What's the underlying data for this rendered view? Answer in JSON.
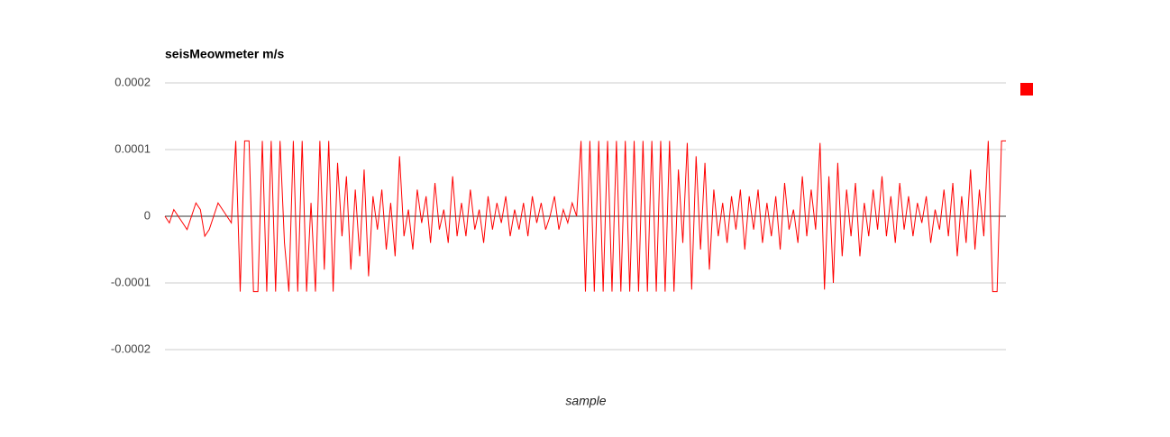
{
  "chart_data": {
    "type": "line",
    "title": "seisMeowmeter m/s",
    "x_label": "sample",
    "ylim": [
      -0.0002,
      0.0002
    ],
    "yticks": [
      0.0002,
      0.0001,
      0,
      -0.0001,
      -0.0002
    ],
    "grid": true,
    "legend": "right",
    "series": [
      {
        "color": "#ff0000",
        "values": [
          0,
          -1e-05,
          1e-05,
          0,
          -1e-05,
          -2e-05,
          0,
          2e-05,
          1e-05,
          -3e-05,
          -2e-05,
          0,
          2e-05,
          1e-05,
          0,
          -1e-05,
          0.000113,
          -0.000113,
          0.000113,
          0.000113,
          -0.000113,
          -0.000113,
          0.000113,
          -0.000113,
          0.000113,
          -0.000113,
          0.000113,
          -4e-05,
          -0.000113,
          0.000113,
          -0.000113,
          0.000113,
          -0.000113,
          2e-05,
          -0.000113,
          0.000113,
          -8e-05,
          0.000113,
          -0.000113,
          8e-05,
          -3e-05,
          6e-05,
          -8e-05,
          4e-05,
          -6e-05,
          7e-05,
          -9e-05,
          3e-05,
          -2e-05,
          4e-05,
          -5e-05,
          2e-05,
          -6e-05,
          9e-05,
          -3e-05,
          1e-05,
          -5e-05,
          4e-05,
          -1e-05,
          3e-05,
          -4e-05,
          5e-05,
          -2e-05,
          1e-05,
          -4e-05,
          6e-05,
          -3e-05,
          2e-05,
          -3e-05,
          4e-05,
          -2e-05,
          1e-05,
          -4e-05,
          3e-05,
          -2e-05,
          2e-05,
          -1e-05,
          3e-05,
          -3e-05,
          1e-05,
          -2e-05,
          2e-05,
          -3e-05,
          3e-05,
          -1e-05,
          2e-05,
          -2e-05,
          0,
          3e-05,
          -2e-05,
          1e-05,
          -1e-05,
          2e-05,
          0,
          0.000113,
          -0.000113,
          0.000113,
          -0.000113,
          0.000113,
          -0.000113,
          0.000113,
          -0.000113,
          0.000113,
          -0.000113,
          0.000113,
          -0.000113,
          0.000113,
          -0.000113,
          0.000113,
          -0.000113,
          0.000113,
          -0.000113,
          0.000113,
          -0.000113,
          0.000113,
          -0.000113,
          7e-05,
          -4e-05,
          0.00011,
          -0.00011,
          9e-05,
          -5e-05,
          8e-05,
          -8e-05,
          4e-05,
          -3e-05,
          2e-05,
          -4e-05,
          3e-05,
          -2e-05,
          4e-05,
          -5e-05,
          3e-05,
          -2e-05,
          4e-05,
          -4e-05,
          2e-05,
          -3e-05,
          3e-05,
          -5e-05,
          5e-05,
          -2e-05,
          1e-05,
          -4e-05,
          6e-05,
          -3e-05,
          4e-05,
          -2e-05,
          0.00011,
          -0.00011,
          6e-05,
          -0.0001,
          8e-05,
          -6e-05,
          4e-05,
          -3e-05,
          5e-05,
          -6e-05,
          2e-05,
          -3e-05,
          4e-05,
          -2e-05,
          6e-05,
          -3e-05,
          3e-05,
          -4e-05,
          5e-05,
          -2e-05,
          3e-05,
          -3e-05,
          2e-05,
          -1e-05,
          3e-05,
          -4e-05,
          1e-05,
          -2e-05,
          4e-05,
          -3e-05,
          5e-05,
          -6e-05,
          3e-05,
          -4e-05,
          7e-05,
          -5e-05,
          4e-05,
          -3e-05,
          0.000113,
          -0.000113,
          -0.000113,
          0.000113,
          0.000113
        ]
      }
    ]
  }
}
